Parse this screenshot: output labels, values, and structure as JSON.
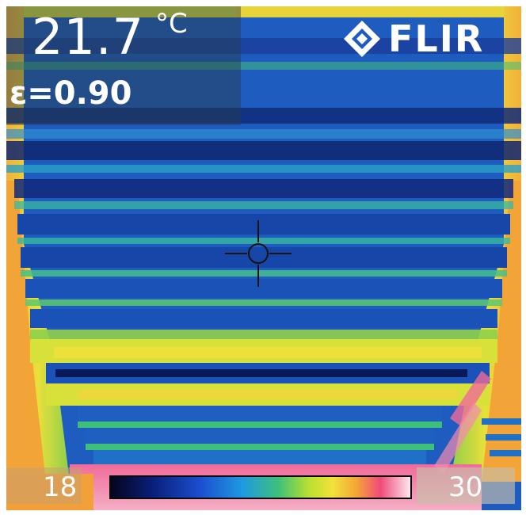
{
  "readout": {
    "temperature": "21.7",
    "unit": "°C",
    "emissivity": "ε=0.90"
  },
  "brand": {
    "name": "FLIR"
  },
  "scale": {
    "min": "18",
    "max": "30"
  },
  "colors": {
    "cold": "#1b4fa8",
    "mid": "#3fc07a",
    "warm": "#f2e23a",
    "hot": "#f04a7a"
  },
  "icons": {
    "brand": "flir-logo-icon",
    "crosshair": "crosshair-icon"
  }
}
